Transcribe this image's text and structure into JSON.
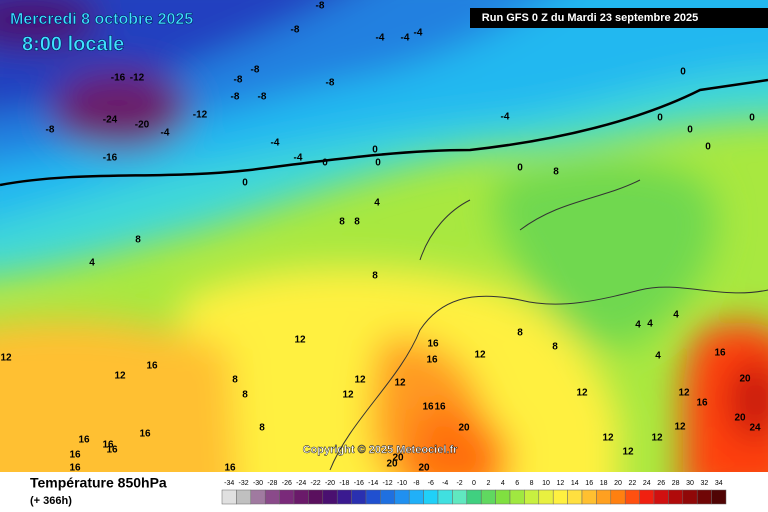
{
  "map": {
    "date": "Mercredi 8 octobre 2025",
    "time": "8:00 locale",
    "run": "Run GFS 0 Z du Mardi 23 septembre 2025",
    "copyright": "Copyright © 2025 Meteociel.fr",
    "field": "Température 850hPa",
    "lead": "(+ 366h)",
    "scale": {
      "ticks": [
        -34,
        -32,
        -30,
        -28,
        -26,
        -24,
        -22,
        -20,
        -18,
        -16,
        -14,
        -12,
        -10,
        -8,
        -6,
        -4,
        -2,
        0,
        2,
        4,
        6,
        8,
        10,
        12,
        14,
        16,
        18,
        20,
        22,
        24,
        26,
        28,
        30,
        32,
        34
      ],
      "colors": [
        "#e0e0e0",
        "#c0c0c0",
        "#a07aa0",
        "#8a4a8a",
        "#7a2a7a",
        "#6a1a6a",
        "#5a105e",
        "#4a1070",
        "#3a1a90",
        "#2a30b0",
        "#2050d0",
        "#1f70e0",
        "#2090f0",
        "#20b0f8",
        "#20d0f8",
        "#40e0e0",
        "#60e8c0",
        "#40d080",
        "#60d860",
        "#80e040",
        "#a0e840",
        "#c8f040",
        "#e8f040",
        "#fff040",
        "#ffe040",
        "#ffc030",
        "#ffa020",
        "#ff8010",
        "#ff5010",
        "#f02010",
        "#d01010",
        "#b00a0a",
        "#900808",
        "#700606",
        "#500404"
      ]
    },
    "contour_labels": [
      -8,
      -8,
      -4,
      -4,
      -4,
      -8,
      -8,
      -8,
      -8,
      -8,
      -16,
      -12,
      -24,
      -20,
      -4,
      -16,
      -12,
      -8,
      -4,
      -4,
      0,
      0,
      0,
      0,
      -4,
      0,
      0,
      0,
      0,
      0,
      0,
      8,
      4,
      8,
      8,
      8,
      4,
      8,
      12,
      12,
      12,
      16,
      16,
      4,
      4,
      4,
      4,
      8,
      8,
      12,
      16,
      16,
      12,
      12,
      12,
      8,
      8,
      8,
      16,
      16,
      20,
      12,
      12,
      16,
      20,
      20,
      24,
      12,
      12,
      12,
      20,
      20,
      20,
      16,
      16,
      16,
      16,
      16,
      16,
      16,
      12
    ]
  }
}
